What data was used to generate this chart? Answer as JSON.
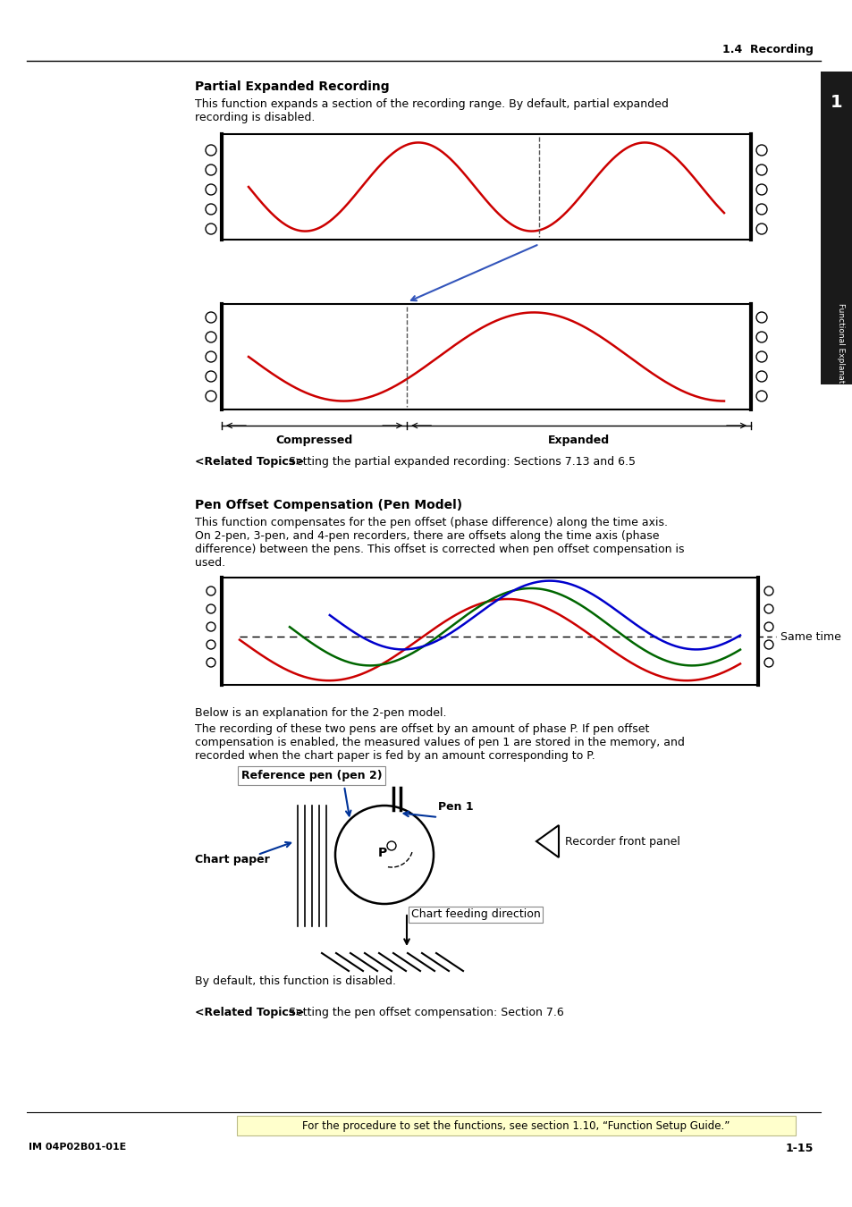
{
  "page_title": "1.4  Recording",
  "section1_title": "Partial Expanded Recording",
  "section1_text1": "This function expands a section of the recording range. By default, partial expanded",
  "section1_text2": "recording is disabled.",
  "section2_title": "Pen Offset Compensation (Pen Model)",
  "section2_text1": "This function compensates for the pen offset (phase difference) along the time axis.",
  "section2_text2": "On 2-pen, 3-pen, and 4-pen recorders, there are offsets along the time axis (phase",
  "section2_text3": "difference) between the pens. This offset is corrected when pen offset compensation is",
  "section2_text4": "used.",
  "same_time_label": "Same time",
  "below_text1": "Below is an explanation for the 2-pen model.",
  "below_text2": "The recording of these two pens are offset by an amount of phase P. If pen offset",
  "below_text3": "compensation is enabled, the measured values of pen 1 are stored in the memory, and",
  "below_text4": "recorded when the chart paper is fed by an amount corresponding to P.",
  "ref_pen_label": "Reference pen (pen 2)",
  "pen1_label": "Pen 1",
  "recorder_front_label": "Recorder front panel",
  "chart_paper_label": "Chart paper",
  "p_label": "P",
  "chart_feed_label": "Chart feeding direction",
  "default_text": "By default, this function is disabled.",
  "related1_bold": "<Related Topics>",
  "related1_rest": "  Setting the partial expanded recording: Sections 7.13 and 6.5",
  "related2_bold": "<Related Topics>",
  "related2_rest": "  Setting the pen offset compensation: Section 7.6",
  "footer_highlight": "For the procedure to set the functions, see section 1.10, “Function Setup Guide.”",
  "footer_left": "IM 04P02B01-01E",
  "footer_right": "1-15",
  "tab_number": "1",
  "tab_text": "Functional Explanation and Setup Guide",
  "bg_color": "#ffffff",
  "highlight_color": "#ffffcc",
  "tab_bg": "#1a1a1a"
}
